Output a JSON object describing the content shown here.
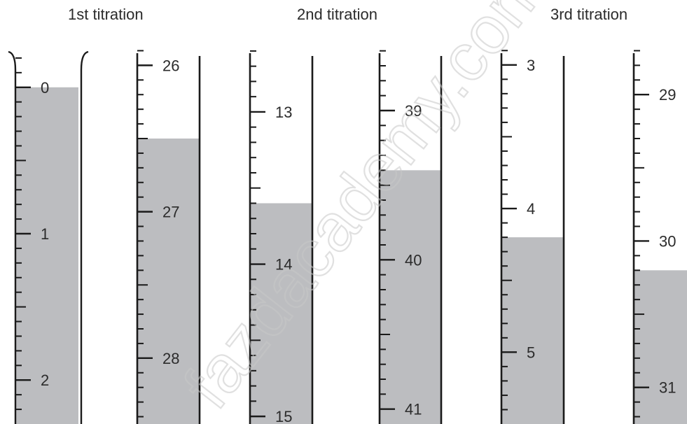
{
  "titles": [
    "1st titration",
    "2nd titration",
    "3rd titration"
  ],
  "colors": {
    "liquid": "#bcbdc0",
    "ink": "#1a1a1a",
    "label": "#2b2b2b",
    "watermark": "#c8c8c8"
  },
  "watermark_text": "fazdacademy.com",
  "scale": {
    "divisions_per_ml": 10
  },
  "burettes": [
    {
      "titration": 1,
      "reading": "initial",
      "labels": [
        "0",
        "1",
        "2"
      ],
      "start_value": 0,
      "meniscus": 0.0,
      "top_value": -0.3,
      "bottom_value": 2.3,
      "open_top": true,
      "right_tube_wall": false
    },
    {
      "titration": 1,
      "reading": "final",
      "labels": [
        "26",
        "27",
        "28"
      ],
      "start_value": 26,
      "meniscus": 26.5,
      "top_value": 25.85,
      "bottom_value": 28.45,
      "open_top": false,
      "right_tube_wall": true
    },
    {
      "titration": 2,
      "reading": "initial",
      "labels": [
        "13",
        "14",
        "15"
      ],
      "start_value": 13,
      "meniscus": 13.6,
      "top_value": 12.55,
      "bottom_value": 15.05,
      "open_top": false,
      "right_tube_wall": true
    },
    {
      "titration": 2,
      "reading": "final",
      "labels": [
        "39",
        "40",
        "41"
      ],
      "start_value": 39,
      "meniscus": 39.4,
      "top_value": 38.55,
      "bottom_value": 41.1,
      "open_top": false,
      "right_tube_wall": true
    },
    {
      "titration": 3,
      "reading": "initial",
      "labels": [
        "3",
        "4",
        "5"
      ],
      "start_value": 3,
      "meniscus": 4.2,
      "top_value": 2.85,
      "bottom_value": 5.5,
      "open_top": false,
      "right_tube_wall": true
    },
    {
      "titration": 3,
      "reading": "final",
      "labels": [
        "29",
        "30",
        "31"
      ],
      "start_value": 29,
      "meniscus": 30.2,
      "top_value": 28.65,
      "bottom_value": 31.25,
      "open_top": false,
      "right_tube_wall": false
    }
  ]
}
